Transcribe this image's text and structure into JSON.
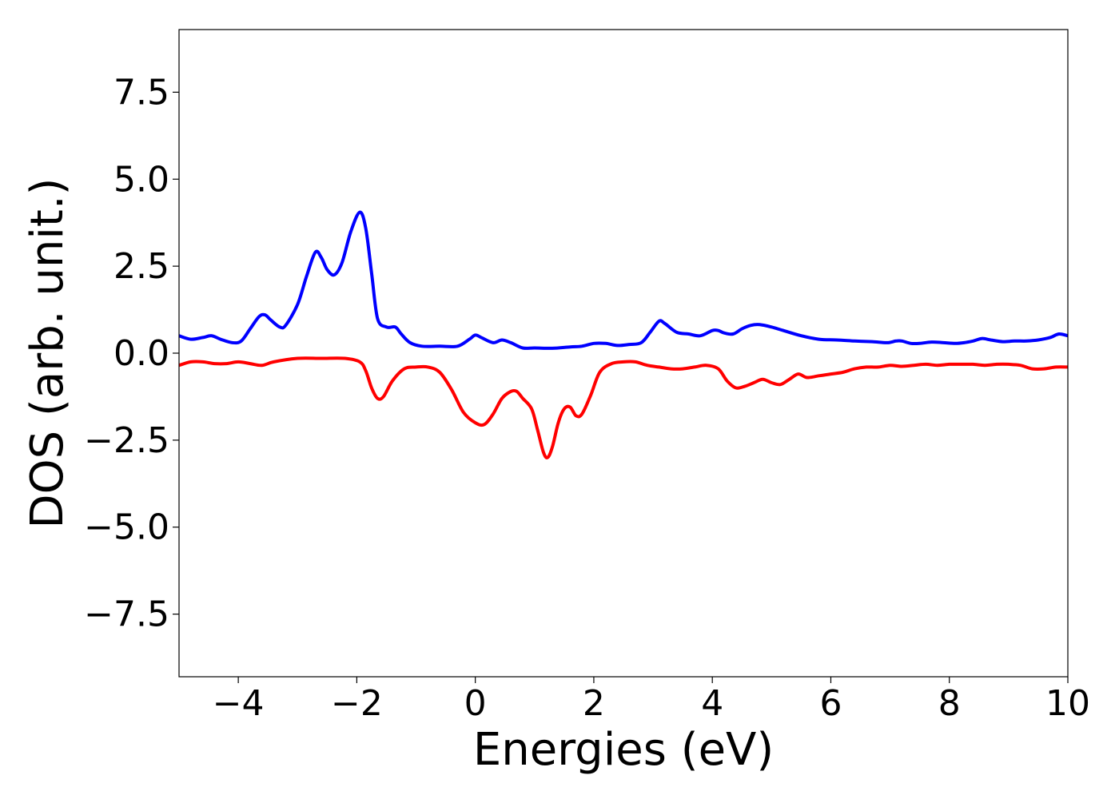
{
  "chart_data": {
    "type": "line",
    "title": "",
    "xlabel": "Energies (eV)",
    "ylabel": "DOS (arb. unit.)",
    "xlim": [
      -5,
      10
    ],
    "ylim": [
      -9.3,
      9.3
    ],
    "xticks": [
      -4,
      -2,
      0,
      2,
      4,
      6,
      8,
      10
    ],
    "xtick_labels": [
      "−4",
      "−2",
      "0",
      "2",
      "4",
      "6",
      "8",
      "10"
    ],
    "yticks": [
      7.5,
      5.0,
      2.5,
      0.0,
      -2.5,
      -5.0,
      -7.5
    ],
    "ytick_labels": [
      "7.5",
      "5.0",
      "2.5",
      "0.0",
      "−2.5",
      "−5.0",
      "−7.5"
    ],
    "grid": false,
    "legend": "none",
    "series": [
      {
        "color": "#0000ff",
        "x": [
          -5.0,
          -4.8,
          -4.6,
          -4.45,
          -4.3,
          -4.1,
          -3.95,
          -3.8,
          -3.65,
          -3.55,
          -3.45,
          -3.3,
          -3.2,
          -3.0,
          -2.85,
          -2.7,
          -2.6,
          -2.5,
          -2.38,
          -2.25,
          -2.1,
          -1.95,
          -1.85,
          -1.75,
          -1.65,
          -1.5,
          -1.35,
          -1.25,
          -1.1,
          -0.9,
          -0.6,
          -0.3,
          -0.1,
          0.0,
          0.1,
          0.3,
          0.45,
          0.6,
          0.8,
          1.0,
          1.3,
          1.6,
          1.8,
          2.0,
          2.2,
          2.4,
          2.6,
          2.8,
          2.95,
          3.1,
          3.2,
          3.4,
          3.6,
          3.8,
          4.0,
          4.1,
          4.2,
          4.35,
          4.5,
          4.65,
          4.8,
          5.0,
          5.2,
          5.5,
          5.8,
          6.1,
          6.4,
          6.7,
          6.95,
          7.1,
          7.2,
          7.35,
          7.5,
          7.7,
          7.9,
          8.1,
          8.25,
          8.4,
          8.55,
          8.7,
          8.9,
          9.1,
          9.3,
          9.5,
          9.7,
          9.85,
          10.0
        ],
        "y": [
          0.5,
          0.4,
          0.45,
          0.5,
          0.4,
          0.3,
          0.35,
          0.7,
          1.05,
          1.1,
          0.95,
          0.75,
          0.8,
          1.4,
          2.2,
          2.9,
          2.75,
          2.4,
          2.25,
          2.6,
          3.5,
          4.05,
          3.6,
          2.3,
          1.0,
          0.75,
          0.75,
          0.55,
          0.3,
          0.2,
          0.2,
          0.2,
          0.4,
          0.52,
          0.45,
          0.3,
          0.38,
          0.3,
          0.15,
          0.15,
          0.14,
          0.18,
          0.2,
          0.28,
          0.28,
          0.22,
          0.25,
          0.3,
          0.6,
          0.92,
          0.85,
          0.6,
          0.55,
          0.5,
          0.65,
          0.65,
          0.58,
          0.55,
          0.7,
          0.8,
          0.82,
          0.75,
          0.65,
          0.5,
          0.4,
          0.38,
          0.35,
          0.33,
          0.3,
          0.35,
          0.35,
          0.28,
          0.28,
          0.32,
          0.3,
          0.28,
          0.3,
          0.35,
          0.42,
          0.38,
          0.33,
          0.35,
          0.35,
          0.38,
          0.45,
          0.55,
          0.5
        ]
      },
      {
        "color": "#ff0000",
        "x": [
          -5.0,
          -4.8,
          -4.6,
          -4.4,
          -4.2,
          -4.0,
          -3.8,
          -3.6,
          -3.4,
          -3.0,
          -2.6,
          -2.2,
          -1.95,
          -1.85,
          -1.75,
          -1.65,
          -1.55,
          -1.4,
          -1.2,
          -1.0,
          -0.8,
          -0.6,
          -0.4,
          -0.2,
          0.0,
          0.15,
          0.3,
          0.45,
          0.6,
          0.7,
          0.8,
          0.95,
          1.05,
          1.15,
          1.22,
          1.3,
          1.4,
          1.5,
          1.6,
          1.7,
          1.8,
          1.95,
          2.1,
          2.3,
          2.5,
          2.7,
          2.9,
          3.1,
          3.3,
          3.5,
          3.7,
          3.9,
          4.1,
          4.25,
          4.4,
          4.55,
          4.7,
          4.85,
          5.0,
          5.15,
          5.3,
          5.45,
          5.6,
          5.8,
          6.0,
          6.2,
          6.4,
          6.6,
          6.8,
          7.0,
          7.2,
          7.4,
          7.6,
          7.8,
          8.0,
          8.2,
          8.4,
          8.6,
          8.8,
          9.0,
          9.2,
          9.4,
          9.6,
          9.8,
          10.0
        ],
        "y": [
          -0.35,
          -0.25,
          -0.25,
          -0.3,
          -0.3,
          -0.25,
          -0.3,
          -0.35,
          -0.25,
          -0.15,
          -0.15,
          -0.15,
          -0.25,
          -0.5,
          -1.0,
          -1.3,
          -1.25,
          -0.8,
          -0.45,
          -0.4,
          -0.4,
          -0.55,
          -1.05,
          -1.7,
          -2.0,
          -2.05,
          -1.75,
          -1.3,
          -1.1,
          -1.1,
          -1.3,
          -1.6,
          -2.2,
          -2.85,
          -3.0,
          -2.7,
          -2.0,
          -1.6,
          -1.55,
          -1.8,
          -1.75,
          -1.2,
          -0.55,
          -0.3,
          -0.25,
          -0.25,
          -0.35,
          -0.4,
          -0.45,
          -0.45,
          -0.4,
          -0.35,
          -0.45,
          -0.8,
          -1.0,
          -0.95,
          -0.85,
          -0.75,
          -0.85,
          -0.9,
          -0.75,
          -0.6,
          -0.7,
          -0.65,
          -0.6,
          -0.55,
          -0.45,
          -0.4,
          -0.4,
          -0.35,
          -0.38,
          -0.35,
          -0.32,
          -0.35,
          -0.32,
          -0.32,
          -0.32,
          -0.35,
          -0.32,
          -0.32,
          -0.35,
          -0.45,
          -0.45,
          -0.4,
          -0.4
        ]
      }
    ]
  }
}
